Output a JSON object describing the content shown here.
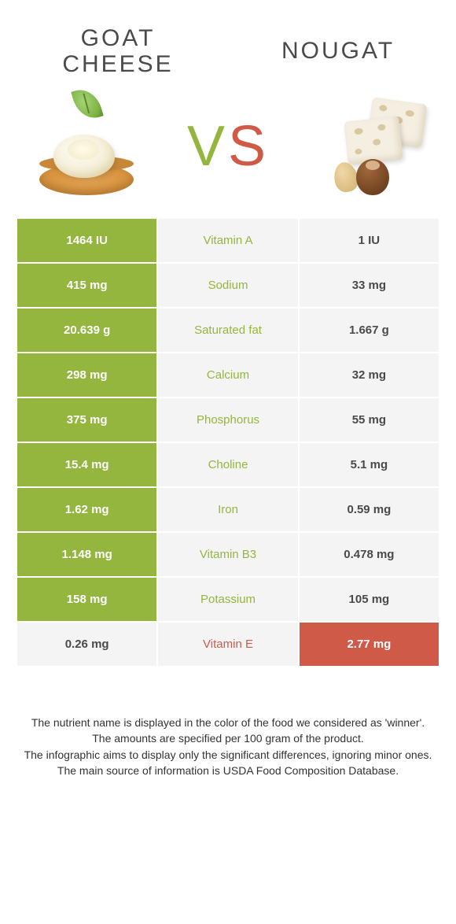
{
  "header": {
    "left_title_line1": "GOAT",
    "left_title_line2": "CHEESE",
    "right_title": "NOUGAT",
    "vs_v": "V",
    "vs_s": "S"
  },
  "colors": {
    "left_accent": "#94b63e",
    "right_accent": "#d05a48",
    "neutral_bg": "#f4f4f4",
    "text_dark": "#4a4a4a",
    "white": "#ffffff"
  },
  "rows": [
    {
      "nutrient": "Vitamin A",
      "left": "1464 IU",
      "right": "1 IU",
      "winner": "left"
    },
    {
      "nutrient": "Sodium",
      "left": "415 mg",
      "right": "33 mg",
      "winner": "left"
    },
    {
      "nutrient": "Saturated fat",
      "left": "20.639 g",
      "right": "1.667 g",
      "winner": "left"
    },
    {
      "nutrient": "Calcium",
      "left": "298 mg",
      "right": "32 mg",
      "winner": "left"
    },
    {
      "nutrient": "Phosphorus",
      "left": "375 mg",
      "right": "55 mg",
      "winner": "left"
    },
    {
      "nutrient": "Choline",
      "left": "15.4 mg",
      "right": "5.1 mg",
      "winner": "left"
    },
    {
      "nutrient": "Iron",
      "left": "1.62 mg",
      "right": "0.59 mg",
      "winner": "left"
    },
    {
      "nutrient": "Vitamin B3",
      "left": "1.148 mg",
      "right": "0.478 mg",
      "winner": "left"
    },
    {
      "nutrient": "Potassium",
      "left": "158 mg",
      "right": "105 mg",
      "winner": "left"
    },
    {
      "nutrient": "Vitamin E",
      "left": "0.26 mg",
      "right": "2.77 mg",
      "winner": "right"
    }
  ],
  "footer": {
    "line1": "The nutrient name is displayed in the color of the food we considered as 'winner'.",
    "line2": "The amounts are specified per 100 gram of the product.",
    "line3": "The infographic aims to display only the significant differences, ignoring minor ones.",
    "line4": "The main source of information is USDA Food Composition Database."
  }
}
